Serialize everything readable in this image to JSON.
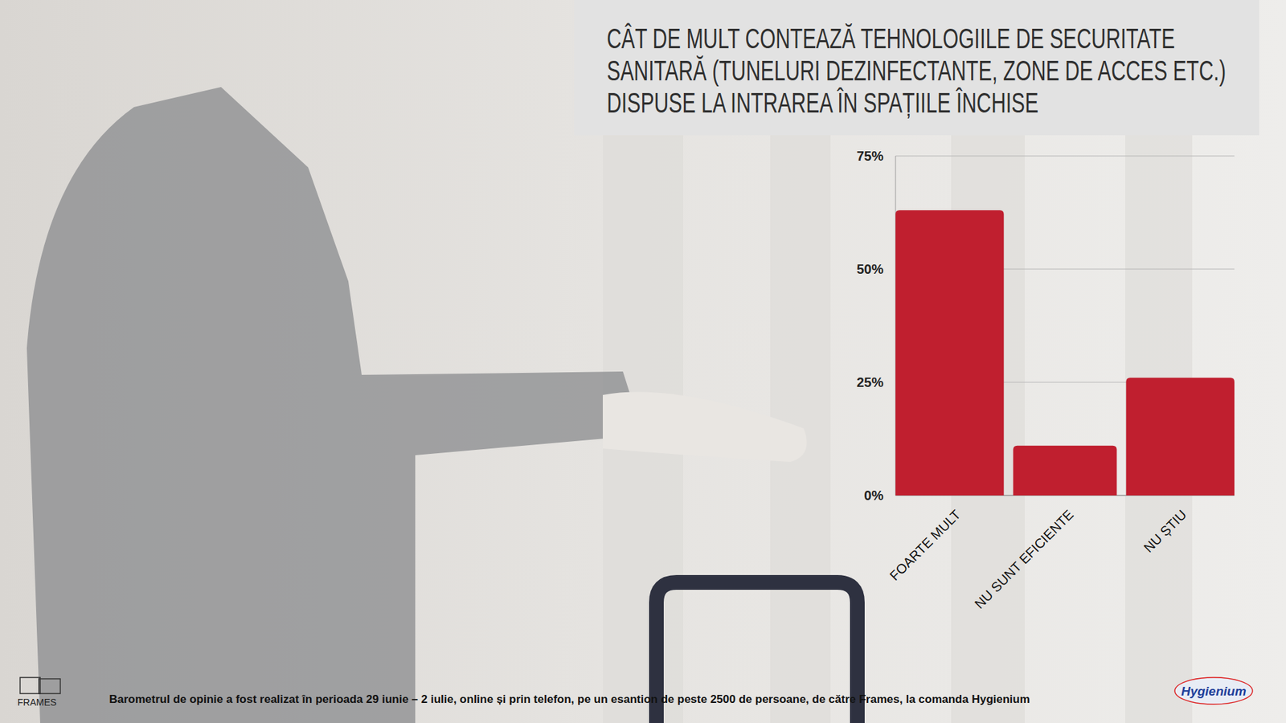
{
  "chart_data": {
    "type": "bar",
    "title": [
      "CÂT DE MULT CONTEAZĂ TEHNOLOGIILE DE SECURITATE",
      "SANITARĂ (TUNELURI DEZINFECTANTE, ZONE DE ACCES ETC.)",
      "DISPUSE LA INTRAREA ÎN SPAȚIILE ÎNCHISE"
    ],
    "categories": [
      "FOARTE MULT",
      "NU SUNT EFICIENTE",
      "NU ȘTIU"
    ],
    "values": [
      63,
      11,
      26
    ],
    "color": "#c01f2f",
    "ylim": [
      0,
      75
    ],
    "yticks": [
      {
        "value": 0,
        "label": "0%"
      },
      {
        "value": 25,
        "label": "25%"
      },
      {
        "value": 50,
        "label": "50%"
      },
      {
        "value": 75,
        "label": "75%"
      }
    ],
    "grid": true,
    "footer": "Barometrul de opinie a fost realizat în perioada 29 iunie – 2 iulie, online și prin telefon, pe un esantion de peste 2500 de persoane, de către Frames, la comanda Hygienium",
    "logos": [
      "FRAMES",
      "Hygienium"
    ]
  }
}
